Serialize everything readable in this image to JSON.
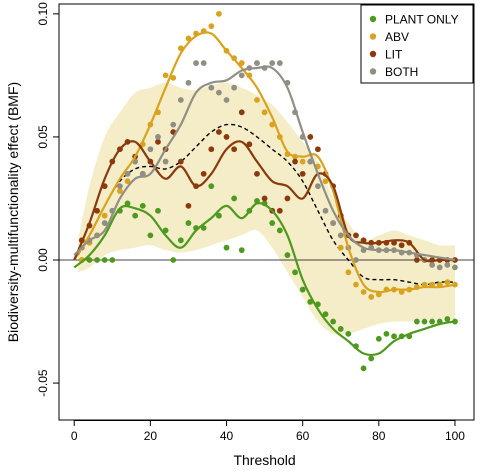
{
  "chart_data": {
    "type": "scatter",
    "title": "",
    "xlabel": "Threshold",
    "ylabel": "Biodiversity-multifunctionality effect (BMF)",
    "xlim": [
      -4,
      105
    ],
    "ylim": [
      -0.065,
      0.104
    ],
    "x_ticks": [
      0,
      20,
      40,
      60,
      80,
      100
    ],
    "x_tick_labels": [
      "0",
      "20",
      "40",
      "60",
      "80",
      "100"
    ],
    "y_ticks": [
      -0.05,
      0.0,
      0.05,
      0.1
    ],
    "y_tick_labels": [
      "-0.05",
      "0.00",
      "0.05",
      "0.10"
    ],
    "grid": false,
    "reference_line_y": 0,
    "legend": {
      "position": "top-right",
      "entries": [
        {
          "label": "PLANT ONLY",
          "color": "#4e9a1e"
        },
        {
          "label": "ABV",
          "color": "#d9a21f"
        },
        {
          "label": "LIT",
          "color": "#8b3a0e"
        },
        {
          "label": "BOTH",
          "color": "#8f8f84"
        }
      ]
    },
    "band": {
      "color": "#f5edc8",
      "x": [
        1,
        4,
        8,
        12,
        16,
        20,
        24,
        28,
        32,
        36,
        40,
        44,
        48,
        52,
        56,
        60,
        64,
        68,
        72,
        76,
        80,
        84,
        88,
        92,
        96,
        100
      ],
      "upper": [
        0.008,
        0.03,
        0.05,
        0.06,
        0.068,
        0.07,
        0.072,
        0.07,
        0.069,
        0.071,
        0.072,
        0.07,
        0.067,
        0.063,
        0.056,
        0.048,
        0.04,
        0.025,
        0.015,
        0.008,
        0.01,
        0.012,
        0.01,
        0.008,
        0.006,
        0.006
      ],
      "lower": [
        -0.005,
        -0.003,
        0.002,
        0.004,
        0.005,
        0.006,
        0.004,
        0.003,
        0.004,
        0.006,
        0.008,
        0.01,
        0.012,
        0.005,
        -0.005,
        -0.015,
        -0.025,
        -0.03,
        -0.03,
        -0.028,
        -0.026,
        -0.025,
        -0.025,
        -0.024,
        -0.024,
        -0.024
      ]
    },
    "dashed_curve": {
      "color": "#000000",
      "x": [
        1,
        4,
        8,
        12,
        16,
        20,
        24,
        28,
        32,
        36,
        40,
        44,
        48,
        52,
        56,
        60,
        64,
        68,
        72,
        76,
        80,
        84,
        88,
        92,
        96,
        100
      ],
      "y": [
        0.002,
        0.01,
        0.022,
        0.032,
        0.037,
        0.038,
        0.037,
        0.04,
        0.046,
        0.052,
        0.055,
        0.054,
        0.05,
        0.045,
        0.04,
        0.032,
        0.02,
        0.008,
        0.0,
        -0.007,
        -0.008,
        -0.008,
        -0.009,
        -0.01,
        -0.009,
        -0.009
      ]
    },
    "series": [
      {
        "name": "PLANT ONLY",
        "color": "#4e9a1e",
        "curve_x": [
          0,
          4,
          8,
          12,
          16,
          20,
          24,
          28,
          32,
          36,
          40,
          44,
          48,
          52,
          56,
          60,
          64,
          68,
          72,
          76,
          80,
          84,
          88,
          92,
          96,
          100
        ],
        "curve_y": [
          -0.003,
          0.002,
          0.01,
          0.021,
          0.021,
          0.018,
          0.01,
          0.005,
          0.012,
          0.017,
          0.022,
          0.017,
          0.023,
          0.02,
          0.01,
          -0.008,
          -0.02,
          -0.028,
          -0.033,
          -0.038,
          -0.038,
          -0.033,
          -0.03,
          -0.028,
          -0.026,
          -0.025
        ],
        "points": [
          [
            2,
            0
          ],
          [
            4,
            0
          ],
          [
            6,
            0
          ],
          [
            8,
            0
          ],
          [
            10,
            0
          ],
          [
            12,
            0.02
          ],
          [
            14,
            0.023
          ],
          [
            16,
            0.018
          ],
          [
            18,
            0.022
          ],
          [
            20,
            0.01
          ],
          [
            22,
            0.02
          ],
          [
            24,
            0.012
          ],
          [
            26,
            0
          ],
          [
            28,
            0.008
          ],
          [
            30,
            0.015
          ],
          [
            32,
            0.013
          ],
          [
            34,
            0.013
          ],
          [
            36,
            0.03
          ],
          [
            38,
            0.018
          ],
          [
            40,
            0.005
          ],
          [
            42,
            0.025
          ],
          [
            44,
            0.004
          ],
          [
            46,
            0.02
          ],
          [
            48,
            0.024
          ],
          [
            50,
            0.023
          ],
          [
            52,
            0.015
          ],
          [
            54,
            0.012
          ],
          [
            56,
            0.002
          ],
          [
            58,
            -0.005
          ],
          [
            60,
            -0.012
          ],
          [
            62,
            -0.017
          ],
          [
            64,
            -0.018
          ],
          [
            66,
            -0.022
          ],
          [
            68,
            -0.025
          ],
          [
            70,
            -0.028
          ],
          [
            72,
            -0.03
          ],
          [
            74,
            -0.035
          ],
          [
            76,
            -0.044
          ],
          [
            78,
            -0.04
          ],
          [
            80,
            -0.032
          ],
          [
            82,
            -0.03
          ],
          [
            84,
            -0.031
          ],
          [
            86,
            -0.031
          ],
          [
            88,
            -0.031
          ],
          [
            90,
            -0.025
          ],
          [
            92,
            -0.025
          ],
          [
            94,
            -0.025
          ],
          [
            96,
            -0.025
          ],
          [
            98,
            -0.024
          ],
          [
            100,
            -0.025
          ]
        ]
      },
      {
        "name": "ABV",
        "color": "#d9a21f",
        "curve_x": [
          0,
          4,
          8,
          12,
          16,
          20,
          24,
          28,
          32,
          36,
          40,
          44,
          48,
          52,
          56,
          60,
          64,
          68,
          72,
          76,
          80,
          84,
          88,
          92,
          96,
          100
        ],
        "curve_y": [
          0.0,
          0.01,
          0.022,
          0.033,
          0.042,
          0.055,
          0.07,
          0.084,
          0.091,
          0.092,
          0.085,
          0.078,
          0.07,
          0.058,
          0.044,
          0.042,
          0.042,
          0.028,
          0.005,
          -0.01,
          -0.013,
          -0.012,
          -0.012,
          -0.011,
          -0.011,
          -0.01
        ],
        "points": [
          [
            2,
            0
          ],
          [
            4,
            0.007
          ],
          [
            6,
            0.01
          ],
          [
            8,
            0.018
          ],
          [
            10,
            0.02
          ],
          [
            12,
            0.028
          ],
          [
            14,
            0.032
          ],
          [
            16,
            0.04
          ],
          [
            18,
            0.047
          ],
          [
            20,
            0.055
          ],
          [
            22,
            0.06
          ],
          [
            24,
            0.075
          ],
          [
            26,
            0.074
          ],
          [
            28,
            0.086
          ],
          [
            30,
            0.09
          ],
          [
            32,
            0.092
          ],
          [
            34,
            0.093
          ],
          [
            36,
            0.095
          ],
          [
            38,
            0.1
          ],
          [
            40,
            0.085
          ],
          [
            42,
            0.082
          ],
          [
            44,
            0.08
          ],
          [
            46,
            0.075
          ],
          [
            48,
            0.065
          ],
          [
            50,
            0.06
          ],
          [
            52,
            0.055
          ],
          [
            54,
            0.05
          ],
          [
            56,
            0.043
          ],
          [
            58,
            0.042
          ],
          [
            60,
            0.04
          ],
          [
            62,
            0.04
          ],
          [
            64,
            0.038
          ],
          [
            66,
            0.032
          ],
          [
            68,
            0.015
          ],
          [
            70,
            0.005
          ],
          [
            72,
            -0.005
          ],
          [
            74,
            -0.01
          ],
          [
            76,
            -0.013
          ],
          [
            78,
            -0.015
          ],
          [
            80,
            -0.014
          ],
          [
            82,
            -0.012
          ],
          [
            84,
            -0.012
          ],
          [
            86,
            -0.013
          ],
          [
            88,
            -0.012
          ],
          [
            90,
            -0.011
          ],
          [
            92,
            -0.01
          ],
          [
            94,
            -0.01
          ],
          [
            96,
            -0.01
          ],
          [
            98,
            -0.009
          ],
          [
            100,
            -0.01
          ]
        ]
      },
      {
        "name": "LIT",
        "color": "#8b3a0e",
        "curve_x": [
          0,
          4,
          8,
          12,
          16,
          20,
          24,
          28,
          32,
          36,
          40,
          44,
          48,
          52,
          56,
          60,
          64,
          68,
          72,
          76,
          80,
          84,
          88,
          92,
          96,
          100
        ],
        "curve_y": [
          0.0,
          0.015,
          0.033,
          0.045,
          0.048,
          0.04,
          0.033,
          0.038,
          0.03,
          0.035,
          0.045,
          0.048,
          0.04,
          0.032,
          0.03,
          0.025,
          0.035,
          0.03,
          0.01,
          0.007,
          0.007,
          0.008,
          0.007,
          0.0,
          0.0,
          0.0
        ],
        "points": [
          [
            2,
            0.008
          ],
          [
            4,
            0.014
          ],
          [
            6,
            0.02
          ],
          [
            8,
            0.03
          ],
          [
            10,
            0.04
          ],
          [
            12,
            0.045
          ],
          [
            14,
            0.048
          ],
          [
            16,
            0.042
          ],
          [
            18,
            0.035
          ],
          [
            20,
            0.04
          ],
          [
            22,
            0.048
          ],
          [
            24,
            0.045
          ],
          [
            26,
            0.052
          ],
          [
            28,
            0.04
          ],
          [
            30,
            0.022
          ],
          [
            32,
            0.03
          ],
          [
            34,
            0.035
          ],
          [
            36,
            0.045
          ],
          [
            38,
            0.052
          ],
          [
            40,
            0.05
          ],
          [
            42,
            0.045
          ],
          [
            44,
            0.06
          ],
          [
            46,
            0.047
          ],
          [
            48,
            0.035
          ],
          [
            50,
            0.025
          ],
          [
            52,
            0.02
          ],
          [
            54,
            0.02
          ],
          [
            56,
            0.025
          ],
          [
            58,
            0.04
          ],
          [
            60,
            0.035
          ],
          [
            62,
            0.05
          ],
          [
            64,
            0.045
          ],
          [
            66,
            0.035
          ],
          [
            68,
            0.03
          ],
          [
            70,
            0.018
          ],
          [
            72,
            0.01
          ],
          [
            74,
            0.01
          ],
          [
            76,
            0.008
          ],
          [
            78,
            0.007
          ],
          [
            80,
            0.007
          ],
          [
            82,
            0.007
          ],
          [
            84,
            0.007
          ],
          [
            86,
            0.006
          ],
          [
            88,
            0.007
          ],
          [
            90,
            0.0
          ],
          [
            92,
            0.0
          ],
          [
            94,
            0.0
          ],
          [
            96,
            0.0
          ],
          [
            98,
            0.0
          ],
          [
            100,
            0.0
          ]
        ]
      },
      {
        "name": "BOTH",
        "color": "#8f8f84",
        "curve_x": [
          0,
          4,
          8,
          12,
          16,
          20,
          24,
          28,
          32,
          36,
          40,
          44,
          48,
          52,
          56,
          60,
          64,
          68,
          72,
          76,
          80,
          84,
          88,
          92,
          96,
          100
        ],
        "curve_y": [
          0.002,
          0.008,
          0.012,
          0.025,
          0.033,
          0.035,
          0.045,
          0.055,
          0.068,
          0.072,
          0.073,
          0.077,
          0.078,
          0.078,
          0.07,
          0.052,
          0.035,
          0.02,
          0.01,
          0.005,
          0.004,
          0.004,
          0.003,
          0.002,
          0.001,
          0.0
        ],
        "points": [
          [
            2,
            0.005
          ],
          [
            4,
            0.008
          ],
          [
            6,
            0.01
          ],
          [
            8,
            0.015
          ],
          [
            10,
            0.02
          ],
          [
            12,
            0.03
          ],
          [
            14,
            0.035
          ],
          [
            16,
            0.04
          ],
          [
            18,
            0.035
          ],
          [
            20,
            0.045
          ],
          [
            22,
            0.05
          ],
          [
            24,
            0.04
          ],
          [
            26,
            0.055
          ],
          [
            28,
            0.065
          ],
          [
            30,
            0.072
          ],
          [
            32,
            0.08
          ],
          [
            34,
            0.08
          ],
          [
            36,
            0.07
          ],
          [
            38,
            0.068
          ],
          [
            40,
            0.065
          ],
          [
            42,
            0.07
          ],
          [
            44,
            0.075
          ],
          [
            46,
            0.078
          ],
          [
            48,
            0.08
          ],
          [
            50,
            0.078
          ],
          [
            52,
            0.08
          ],
          [
            54,
            0.08
          ],
          [
            56,
            0.072
          ],
          [
            58,
            0.06
          ],
          [
            60,
            0.05
          ],
          [
            62,
            0.04
          ],
          [
            64,
            0.03
          ],
          [
            66,
            0.02
          ],
          [
            68,
            0.015
          ],
          [
            70,
            0.01
          ],
          [
            72,
            0.005
          ],
          [
            74,
            0.0
          ],
          [
            76,
            0.004
          ],
          [
            78,
            0.005
          ],
          [
            80,
            0.004
          ],
          [
            82,
            0.004
          ],
          [
            84,
            0.004
          ],
          [
            86,
            0.003
          ],
          [
            88,
            0.003
          ],
          [
            90,
            0.002
          ],
          [
            92,
            0.0
          ],
          [
            94,
            -0.002
          ],
          [
            96,
            -0.003
          ],
          [
            98,
            -0.002
          ],
          [
            100,
            -0.003
          ]
        ]
      }
    ]
  }
}
